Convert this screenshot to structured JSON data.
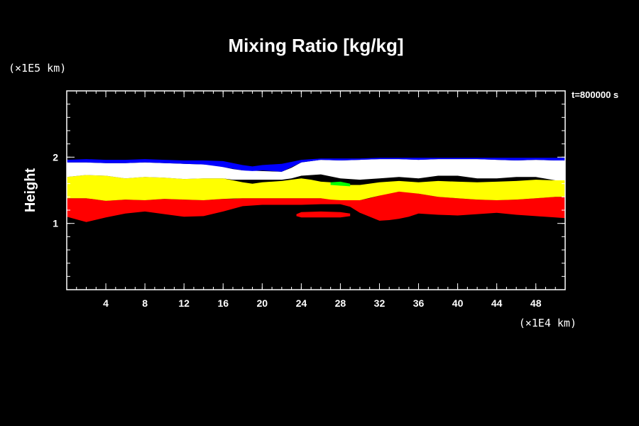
{
  "chart_data": {
    "type": "area",
    "title": "Mixing Ratio [kg/kg]",
    "ylabel": "Height",
    "x_unit": "(×1E4 km)",
    "y_unit": "(×1E5 km)",
    "time_label": "t=800000 s",
    "xlim": [
      0,
      51
    ],
    "ylim": [
      0,
      3
    ],
    "x_ticks": [
      4,
      8,
      12,
      16,
      20,
      24,
      28,
      32,
      36,
      40,
      44,
      48
    ],
    "x_tick_labels": [
      "4",
      "8",
      "12",
      "16",
      "20",
      "24",
      "28",
      "32",
      "36",
      "40",
      "44",
      "48"
    ],
    "y_ticks": [
      1,
      2
    ],
    "y_tick_labels": [
      "1",
      "2"
    ],
    "x_minor_step": 1,
    "y_minor_step": 0.2,
    "background_color": "#000000",
    "layers": [
      {
        "color": "#ff0000",
        "x": [
          0,
          2,
          4,
          6,
          8,
          10,
          12,
          14,
          16,
          17,
          18,
          20,
          22,
          24,
          26,
          28,
          29,
          30,
          31,
          32,
          33,
          34,
          35,
          36,
          38,
          40,
          42,
          44,
          46,
          48,
          50,
          51
        ],
        "top": [
          1.38,
          1.38,
          1.34,
          1.36,
          1.35,
          1.37,
          1.36,
          1.35,
          1.37,
          1.37,
          1.38,
          1.38,
          1.38,
          1.38,
          1.38,
          1.35,
          1.35,
          1.35,
          1.38,
          1.42,
          1.46,
          1.48,
          1.48,
          1.45,
          1.4,
          1.38,
          1.36,
          1.35,
          1.36,
          1.38,
          1.4,
          1.4
        ],
        "bottom": [
          1.1,
          1.02,
          1.09,
          1.15,
          1.18,
          1.14,
          1.1,
          1.11,
          1.18,
          1.22,
          1.26,
          1.28,
          1.28,
          1.28,
          1.29,
          1.29,
          1.25,
          1.16,
          1.1,
          1.04,
          1.05,
          1.07,
          1.1,
          1.15,
          1.13,
          1.12,
          1.14,
          1.16,
          1.13,
          1.11,
          1.09,
          1.08
        ]
      },
      {
        "color": "#ff0000",
        "x": [
          23.5,
          24,
          26,
          28,
          29
        ],
        "top": [
          1.14,
          1.17,
          1.18,
          1.17,
          1.15
        ],
        "bottom": [
          1.11,
          1.09,
          1.09,
          1.09,
          1.11
        ]
      },
      {
        "color": "#ffff00",
        "x": [
          0,
          2,
          4,
          6,
          8,
          10,
          12,
          14,
          16,
          18,
          19,
          20,
          22,
          24,
          25,
          26,
          27,
          28,
          30,
          32,
          34,
          36,
          38,
          40,
          42,
          44,
          46,
          48,
          50,
          51
        ],
        "top": [
          1.7,
          1.73,
          1.72,
          1.68,
          1.7,
          1.69,
          1.67,
          1.68,
          1.68,
          1.62,
          1.6,
          1.62,
          1.64,
          1.68,
          1.66,
          1.63,
          1.62,
          1.58,
          1.58,
          1.62,
          1.64,
          1.62,
          1.64,
          1.63,
          1.62,
          1.63,
          1.64,
          1.66,
          1.65,
          1.65
        ],
        "bottom": [
          1.38,
          1.38,
          1.34,
          1.36,
          1.35,
          1.37,
          1.36,
          1.35,
          1.37,
          1.38,
          1.38,
          1.38,
          1.38,
          1.38,
          1.38,
          1.38,
          1.36,
          1.35,
          1.35,
          1.42,
          1.48,
          1.45,
          1.4,
          1.38,
          1.36,
          1.35,
          1.36,
          1.38,
          1.4,
          1.4
        ]
      },
      {
        "color": "#ffffff",
        "x": [
          0,
          2,
          4,
          6,
          8,
          10,
          12,
          14,
          15,
          16,
          17,
          18,
          22,
          23,
          24,
          26,
          28,
          30,
          32,
          34,
          36,
          38,
          40,
          42,
          44,
          46,
          48,
          50,
          51
        ],
        "top": [
          1.92,
          1.92,
          1.91,
          1.91,
          1.92,
          1.91,
          1.9,
          1.89,
          1.88,
          1.85,
          1.82,
          1.8,
          1.78,
          1.84,
          1.92,
          1.96,
          1.95,
          1.96,
          1.97,
          1.97,
          1.96,
          1.97,
          1.97,
          1.97,
          1.96,
          1.95,
          1.96,
          1.95,
          1.95
        ],
        "bottom": [
          1.7,
          1.73,
          1.72,
          1.68,
          1.7,
          1.69,
          1.67,
          1.68,
          1.68,
          1.68,
          1.66,
          1.66,
          1.66,
          1.68,
          1.72,
          1.74,
          1.68,
          1.66,
          1.68,
          1.7,
          1.68,
          1.72,
          1.72,
          1.68,
          1.68,
          1.7,
          1.7,
          1.65,
          1.65
        ]
      },
      {
        "color": "#0000ff",
        "x": [
          0,
          2,
          4,
          6,
          8,
          10,
          12,
          14,
          16,
          18,
          19,
          20,
          22,
          24,
          26,
          28,
          30,
          32,
          34,
          36,
          38,
          40,
          42,
          44,
          46,
          48,
          50,
          51
        ],
        "top": [
          1.96,
          1.97,
          1.96,
          1.96,
          1.97,
          1.96,
          1.95,
          1.95,
          1.94,
          1.88,
          1.86,
          1.88,
          1.9,
          1.96,
          1.98,
          1.98,
          1.98,
          1.99,
          1.99,
          1.99,
          1.99,
          1.99,
          1.99,
          1.99,
          1.99,
          1.99,
          1.99,
          1.99
        ],
        "bottom": [
          1.92,
          1.92,
          1.91,
          1.91,
          1.92,
          1.91,
          1.9,
          1.89,
          1.85,
          1.8,
          1.79,
          1.8,
          1.78,
          1.92,
          1.96,
          1.95,
          1.96,
          1.97,
          1.97,
          1.96,
          1.97,
          1.97,
          1.97,
          1.96,
          1.95,
          1.96,
          1.95,
          1.95
        ]
      },
      {
        "color": "#00ff00",
        "x": [
          27,
          28,
          29
        ],
        "top": [
          1.62,
          1.63,
          1.6
        ],
        "bottom": [
          1.58,
          1.57,
          1.56
        ]
      }
    ]
  }
}
